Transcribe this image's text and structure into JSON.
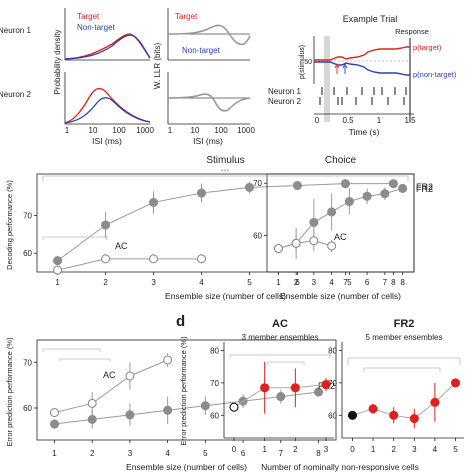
{
  "panel_labels": {
    "d": "d"
  },
  "top": {
    "row_labels": [
      "Neuron 1",
      "Neuron 2"
    ],
    "density_ylabel": "Probability density",
    "llr_ylabel": "W. LLR (bits)",
    "x_ticks": [
      "1",
      "10",
      "100",
      "1000"
    ],
    "xlabel": "ISI (ms)",
    "legend": {
      "target": "Target",
      "nontarget": "Non-target"
    },
    "colors": {
      "target": "#e0201b",
      "nontarget": "#2b3eb3",
      "llr": "#999999"
    },
    "example": {
      "title": "Example Trial",
      "response_label": "Response",
      "ylabel": "p(stimulus)",
      "y_tick": "50",
      "target_label": "p(target)",
      "nontarget_label": "p(non-target)",
      "neuron_labels": [
        "Neuron 1",
        "Neuron 2"
      ],
      "x_ticks": [
        "0",
        "0.5",
        "1",
        "1.5"
      ],
      "xlabel": "Time (s)"
    }
  },
  "chart_data": [
    {
      "type": "line",
      "panel": "Stimulus",
      "title": "Stimulus",
      "xlabel": "Ensemble size (number of cells)",
      "ylabel": "Decoding performance (%)",
      "x": [
        1,
        2,
        3,
        4,
        5,
        6,
        7,
        8
      ],
      "xlim": [
        1,
        8
      ],
      "ylim": [
        55,
        80
      ],
      "y_ticks": [
        60,
        70
      ],
      "significance": "***",
      "series": [
        {
          "name": "FR2",
          "color": "#8c8c8c",
          "filled": true,
          "x": [
            1,
            2,
            3,
            4,
            5,
            6,
            7,
            8
          ],
          "values": [
            58,
            67.5,
            73.5,
            76,
            77.5,
            78,
            78.5,
            78.5
          ],
          "err": [
            1.2,
            3.5,
            3,
            2.5,
            1.5,
            1.2,
            1,
            0.8
          ]
        },
        {
          "name": "AC",
          "color": "#8c8c8c",
          "filled": false,
          "x": [
            1,
            2,
            3,
            4
          ],
          "values": [
            55.5,
            58.5,
            58.5,
            58.5
          ],
          "err": [
            0.8,
            1,
            0.8,
            0.6
          ]
        }
      ]
    },
    {
      "type": "line",
      "panel": "Choice",
      "title": "Choice",
      "xlabel": "Ensemble size (number of cells)",
      "x": [
        1,
        2,
        3,
        4,
        5,
        6,
        7,
        8
      ],
      "xlim": [
        1,
        8
      ],
      "ylim": [
        53,
        71
      ],
      "y_ticks": [
        60,
        70
      ],
      "series": [
        {
          "name": "FR2",
          "color": "#8c8c8c",
          "filled": true,
          "x": [
            1,
            2,
            3,
            4,
            5,
            6,
            7,
            8
          ],
          "values": [
            57.5,
            58.5,
            62.5,
            64.5,
            66.5,
            67.5,
            68,
            69
          ],
          "err": [
            0.8,
            3,
            4.5,
            3.5,
            2.5,
            1.5,
            1.2,
            0.8
          ]
        },
        {
          "name": "AC",
          "color": "#8c8c8c",
          "filled": false,
          "x": [
            1,
            2,
            3,
            4
          ],
          "values": [
            57.5,
            58.5,
            59,
            58
          ],
          "err": [
            0.8,
            1.5,
            2,
            1.2
          ]
        }
      ]
    },
    {
      "type": "line",
      "panel": "Error prediction vs ensemble size",
      "xlabel": "Ensemble size (number of cells)",
      "ylabel": "Error prediction performance (%)",
      "x": [
        1,
        2,
        3,
        4,
        5,
        6,
        7,
        8
      ],
      "xlim": [
        1,
        8
      ],
      "ylim": [
        53,
        74
      ],
      "y_ticks": [
        60,
        70
      ],
      "series": [
        {
          "name": "AC",
          "color": "#8c8c8c",
          "filled": false,
          "x": [
            1,
            2,
            3,
            4
          ],
          "values": [
            59,
            61,
            67,
            70.5
          ],
          "err": [
            1,
            2.5,
            3,
            1.5
          ]
        },
        {
          "name": "FR2",
          "color": "#8c8c8c",
          "filled": true,
          "x": [
            1,
            2,
            3,
            4,
            5,
            6,
            7,
            8
          ],
          "values": [
            56.5,
            57.5,
            58.5,
            59.5,
            60.5,
            61.5,
            62.5,
            63.5
          ],
          "err": [
            1,
            2,
            2.5,
            3,
            2,
            1.5,
            1.5,
            1
          ]
        }
      ]
    },
    {
      "type": "scatter",
      "panel": "AC",
      "title": "AC",
      "subtitle": "3 member ensembles",
      "xlabel": "Number of nominally non-responsive cells",
      "ylabel": "Error prediction performance (%)",
      "x": [
        0,
        1,
        2,
        3
      ],
      "xlim": [
        0,
        3
      ],
      "ylim": [
        53,
        82
      ],
      "y_ticks": [
        60,
        70,
        80
      ],
      "series": [
        {
          "name": "AC",
          "color": "#e0201b",
          "x": [
            0,
            1,
            2,
            3
          ],
          "values": [
            62.5,
            68.5,
            68.5,
            69.5
          ],
          "err": [
            0.8,
            8,
            6,
            2
          ]
        }
      ]
    },
    {
      "type": "scatter",
      "panel": "FR2",
      "title": "FR2",
      "subtitle": "5 member ensembles",
      "x": [
        0,
        1,
        2,
        3,
        4,
        5
      ],
      "xlim": [
        0,
        5
      ],
      "ylim": [
        53,
        82
      ],
      "y_ticks": [
        60,
        70,
        80
      ],
      "series": [
        {
          "name": "FR2",
          "color": "#e0201b",
          "x": [
            0,
            1,
            2,
            3,
            4,
            5
          ],
          "values": [
            60,
            62,
            60,
            59,
            64,
            70
          ],
          "err": [
            1,
            1.5,
            2.5,
            3,
            6,
            1
          ]
        }
      ]
    }
  ]
}
